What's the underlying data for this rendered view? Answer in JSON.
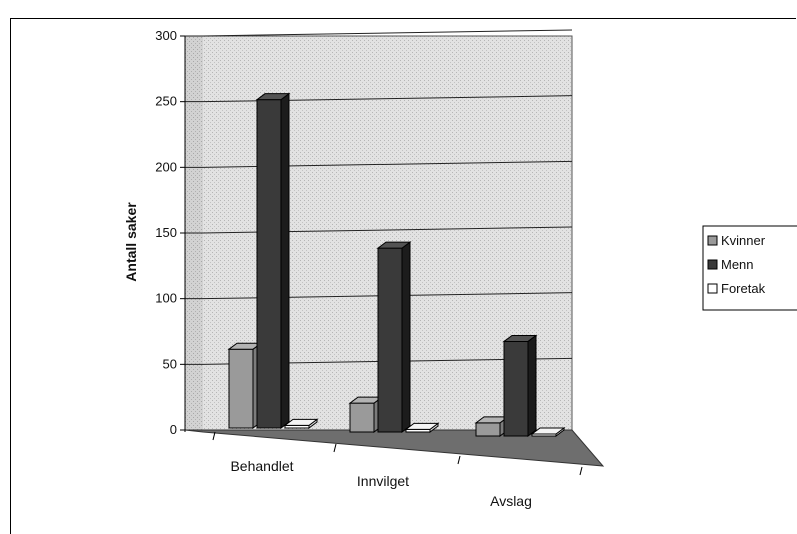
{
  "chart_data": {
    "type": "bar",
    "title": "",
    "xlabel": "",
    "ylabel": "Antall saker",
    "ylim": [
      0,
      300
    ],
    "yticks": [
      "0",
      "50",
      "100",
      "150",
      "200",
      "250",
      "300"
    ],
    "categories": [
      "Behandlet",
      "Innvilget",
      "Avslag"
    ],
    "series": [
      {
        "name": "Kvinner",
        "values": [
          60,
          22,
          10
        ],
        "color": "#9a9a9a"
      },
      {
        "name": "Menn",
        "values": [
          250,
          140,
          72
        ],
        "color": "#3a3a3a"
      },
      {
        "name": "Foretak",
        "values": [
          2,
          2,
          1
        ],
        "color": "#ffffff"
      }
    ],
    "grid": true,
    "legend": "right",
    "three_d": true
  }
}
